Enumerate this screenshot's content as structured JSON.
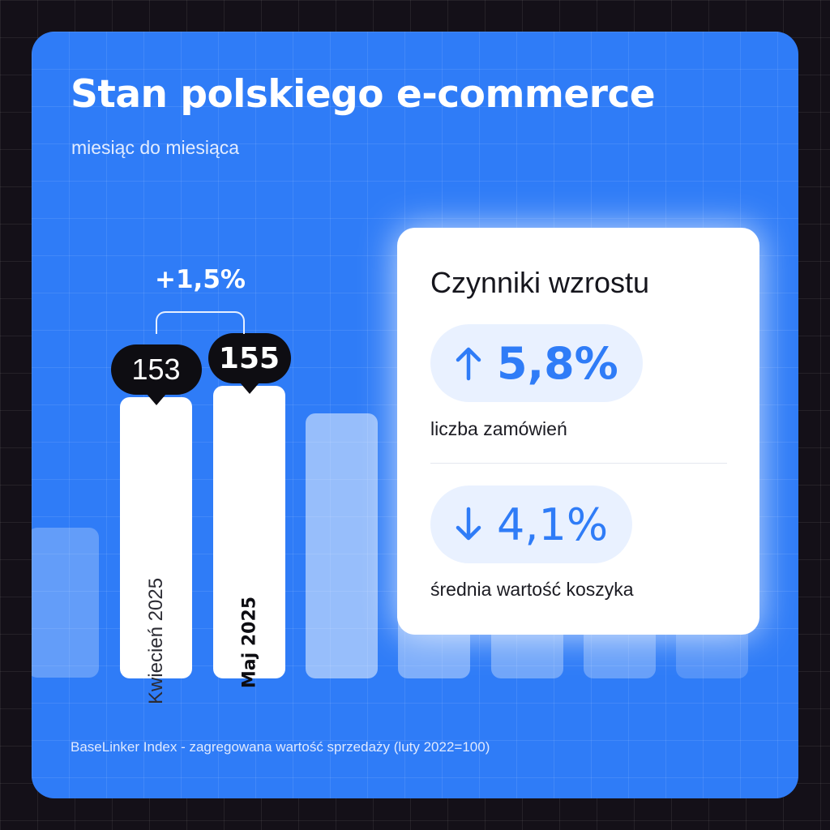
{
  "header": {
    "title": "Stan polskiego e-commerce",
    "subtitle": "miesiąc do miesiąca"
  },
  "footer": {
    "note": "BaseLinker Index - zagregowana wartość sprzedaży (luty 2022=100)"
  },
  "colors": {
    "background": "#2f7cf7",
    "accent": "#2f7cf7",
    "highlight_bar": "#ffffff",
    "bubble": "#0e0d12"
  },
  "chart_data": {
    "type": "bar",
    "title": "Stan polskiego e-commerce",
    "subtitle": "miesiąc do miesiąca",
    "categories": [
      "Kwiecień 2025",
      "Maj 2025"
    ],
    "series": [
      {
        "values": [
          153,
          155
        ]
      }
    ],
    "value_labels": [
      "153",
      "155"
    ],
    "change_label": "+1,5%",
    "note": "BaseLinker Index - zagregowana wartość sprzedaży (luty 2022=100)"
  },
  "factors": {
    "title": "Czynniki wzrostu",
    "items": [
      {
        "value": "5,8%",
        "label": "liczba zamówień",
        "direction": "up",
        "icon": "arrow-up-icon"
      },
      {
        "value": "4,1%",
        "label": "średnia wartość koszyka",
        "direction": "down",
        "icon": "arrow-down-icon"
      }
    ]
  }
}
